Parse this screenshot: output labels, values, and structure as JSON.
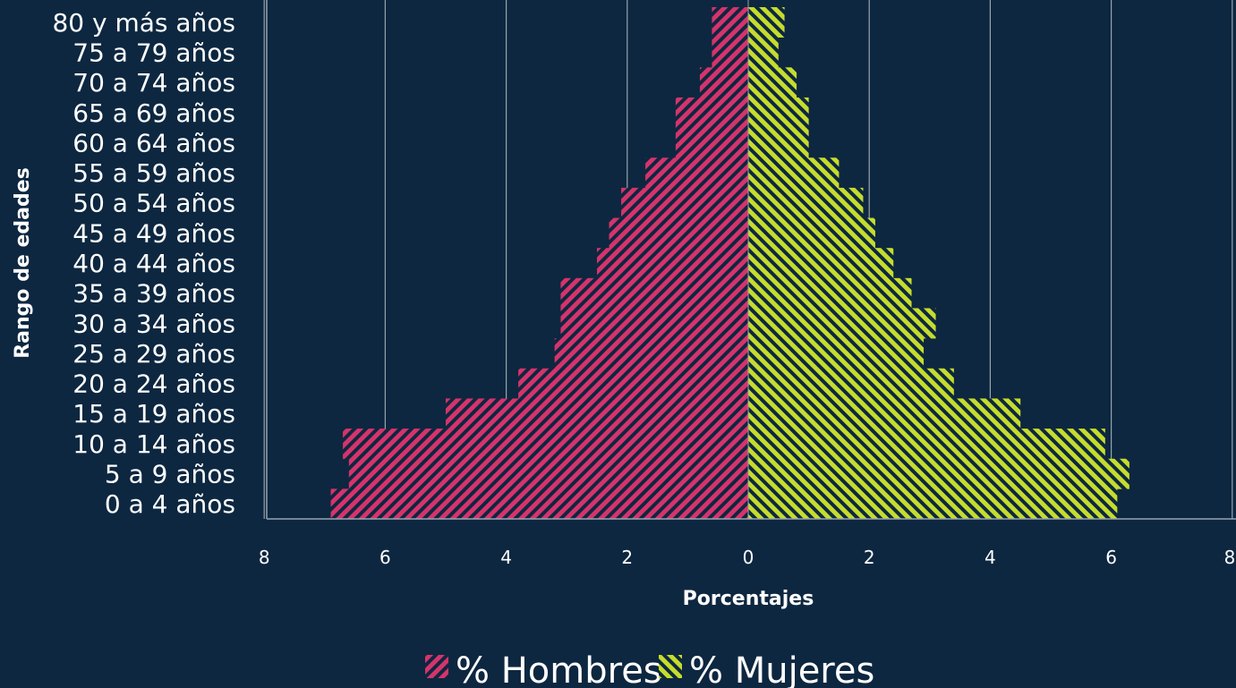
{
  "chart_data": {
    "type": "bar",
    "orientation": "horizontal",
    "layout": "population-pyramid",
    "categories": [
      "0 a 4 años",
      "5 a 9 años",
      "10 a 14 años",
      "15 a 19 años",
      "20 a 24 años",
      "25 a 29 años",
      "30 a 34 años",
      "35 a 39 años",
      "40 a 44 años",
      "45 a 49 años",
      "50 a 54 años",
      "55 a 59 años",
      "60 a 64 años",
      "65 a 69 años",
      "70 a 74 años",
      "75 a 79 años",
      "80 y más años"
    ],
    "series": [
      {
        "name": "% Hombres",
        "side": "left",
        "color": "#d6336c",
        "values": [
          6.9,
          6.6,
          6.7,
          5.0,
          3.8,
          3.2,
          3.1,
          3.1,
          2.5,
          2.3,
          2.1,
          1.7,
          1.2,
          1.2,
          0.8,
          0.6,
          0.6
        ]
      },
      {
        "name": "% Mujeres",
        "side": "right",
        "color": "#c6dc2c",
        "values": [
          6.1,
          6.3,
          5.9,
          4.5,
          3.4,
          2.9,
          3.1,
          2.7,
          2.4,
          2.1,
          1.9,
          1.5,
          1.0,
          1.0,
          0.8,
          0.5,
          0.6
        ]
      }
    ],
    "xlabel": "Porcentajes",
    "ylabel": "Rango de edades",
    "xlim": [
      -8,
      8
    ],
    "xticks": [
      8,
      6,
      4,
      2,
      0,
      2,
      4,
      6,
      8
    ],
    "grid": "vertical",
    "legend": "bottom",
    "background": "#0d2740",
    "gridline_color": "#9aa3ad"
  }
}
